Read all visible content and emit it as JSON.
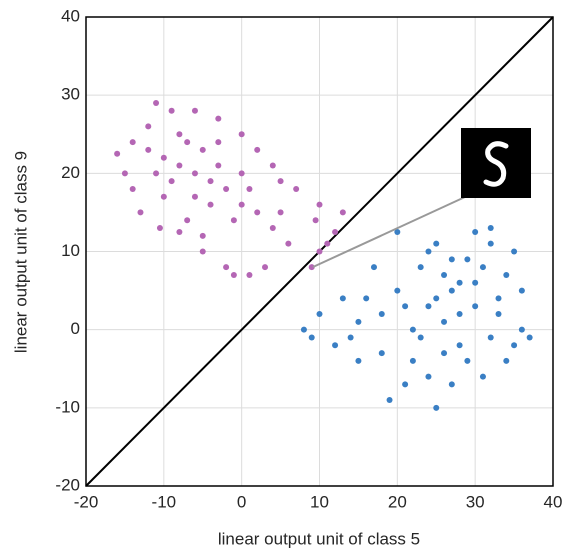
{
  "chart_data": {
    "type": "scatter",
    "xlabel": "linear output unit of class 5",
    "ylabel": "linear output unit of class 9",
    "xlim": [
      -20,
      40
    ],
    "ylim": [
      -20,
      40
    ],
    "xticks": [
      -20,
      -10,
      0,
      10,
      20,
      30,
      40
    ],
    "yticks": [
      -20,
      -10,
      0,
      10,
      20,
      30,
      40
    ],
    "grid": true,
    "series": [
      {
        "color": "#b466b4",
        "x": [
          -16,
          -15,
          -14,
          -13,
          -11,
          -10.5,
          -8,
          -5,
          -2,
          -1,
          1,
          3,
          9,
          10,
          11,
          12,
          13,
          9.5,
          10,
          7,
          5,
          4,
          2,
          0,
          -3,
          -6,
          -9,
          -12,
          -14,
          -12,
          -10,
          -8,
          -6,
          -4,
          -7,
          -9,
          -5,
          -3,
          -2,
          0,
          -1,
          -4,
          -6,
          -11,
          -8,
          -10,
          2,
          4,
          6,
          0,
          -3,
          1,
          5,
          -7,
          -5
        ],
        "values": [
          22.5,
          20,
          18,
          15,
          29,
          13,
          12.5,
          10,
          8,
          7,
          7,
          8,
          8,
          10,
          11,
          12.5,
          15,
          14,
          16,
          18,
          19,
          21,
          23,
          25,
          27,
          28,
          28,
          26,
          24,
          23,
          22,
          21,
          20,
          19,
          24,
          19,
          23,
          21,
          18,
          16,
          14,
          16,
          17,
          20,
          25,
          17,
          15,
          13,
          11,
          20,
          24,
          18,
          15,
          14,
          12
        ]
      },
      {
        "color": "#3a7fc4",
        "x": [
          8,
          9,
          10,
          12,
          13,
          15,
          15,
          17,
          18,
          19,
          20,
          21,
          22,
          23,
          24,
          25,
          25,
          26,
          27,
          28,
          29,
          30,
          31,
          32,
          33,
          34,
          35,
          36,
          37,
          36,
          34,
          32,
          30,
          28,
          26,
          24,
          22,
          20,
          18,
          16,
          14,
          26,
          28,
          30,
          29,
          27,
          25,
          23,
          31,
          33,
          21,
          27,
          24,
          32,
          35
        ],
        "values": [
          0,
          -1,
          2,
          -2,
          4,
          1,
          -4,
          8,
          -3,
          -9,
          12.5,
          3,
          -4,
          8,
          -6,
          -10,
          11,
          1,
          5,
          -2,
          9,
          12.5,
          -6,
          11,
          2,
          7,
          -2,
          0,
          -1,
          5,
          -4,
          -1,
          3,
          6,
          7,
          3,
          0,
          5,
          2,
          4,
          -1,
          -3,
          2,
          6,
          -4,
          9,
          4,
          -1,
          8,
          4,
          -7,
          -7,
          10,
          13,
          10
        ]
      }
    ]
  }
}
